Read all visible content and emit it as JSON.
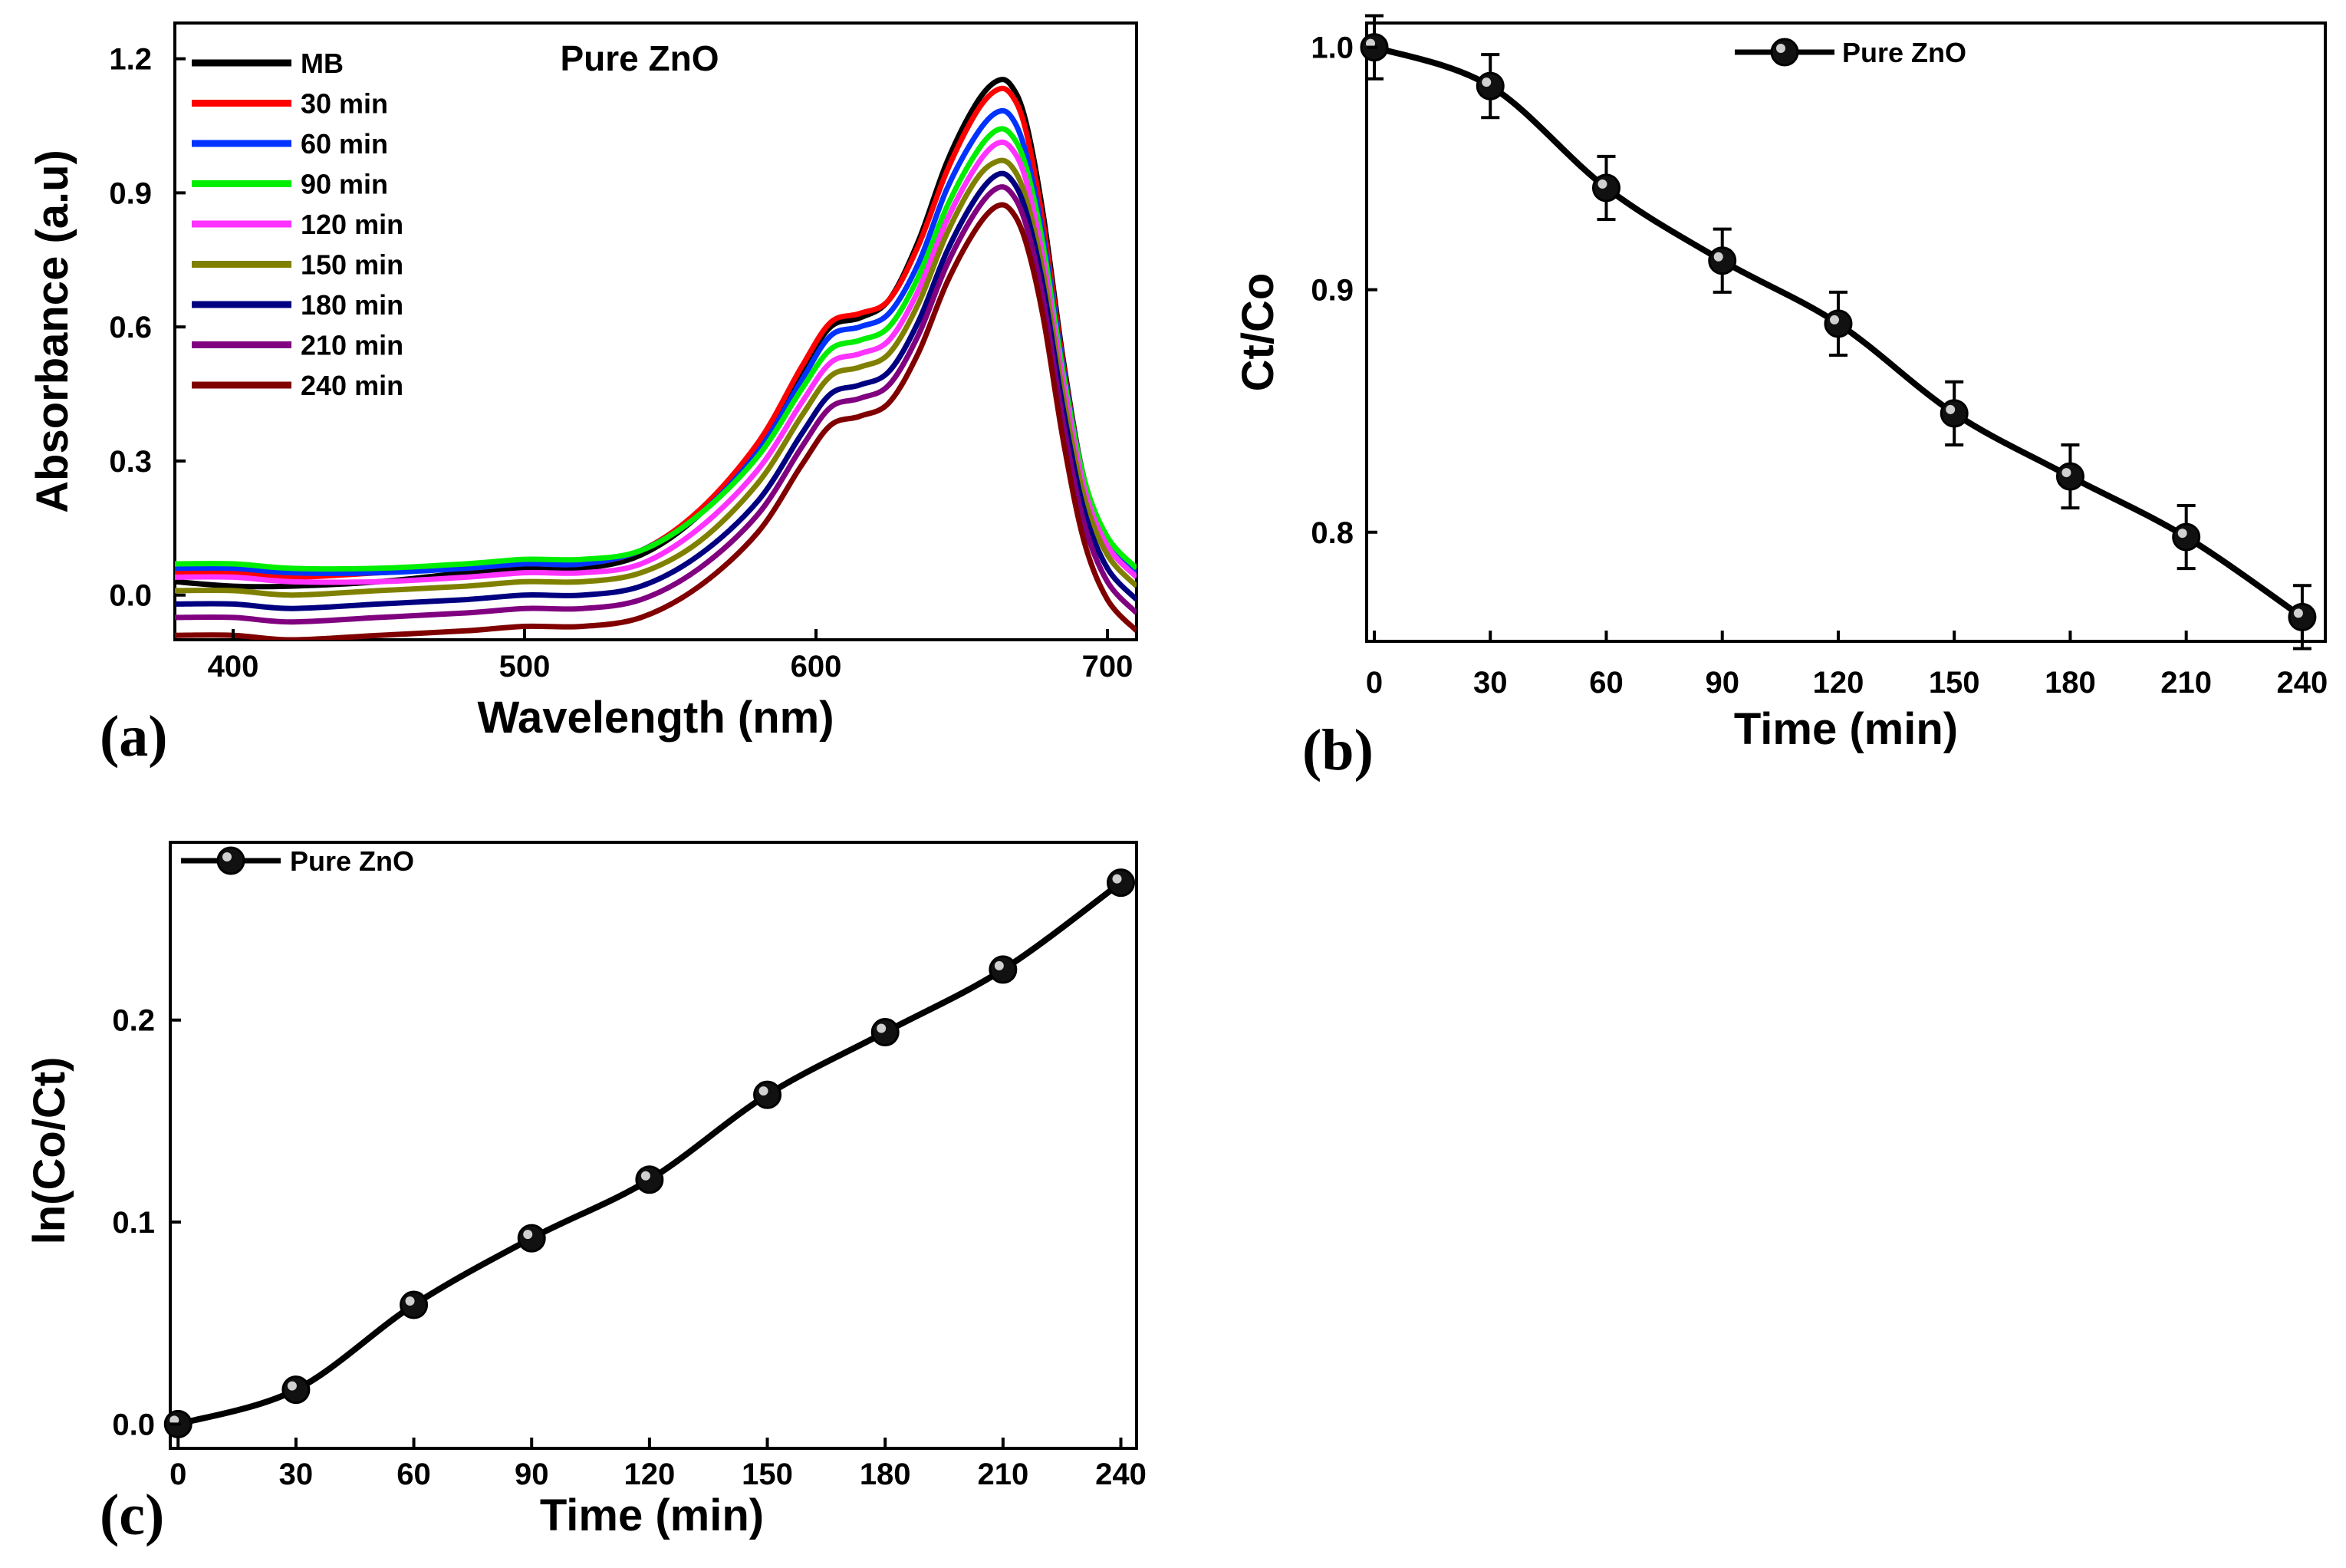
{
  "chart_data": [
    {
      "panel": "(a)",
      "type": "line",
      "title": "Pure ZnO",
      "xlabel": "Wavelength (nm)",
      "ylabel": "Absorbance (a.u)",
      "xlim": [
        380,
        710
      ],
      "ylim": [
        -0.1,
        1.28
      ],
      "xticks": [
        400,
        500,
        600,
        700
      ],
      "yticks": [
        0.0,
        0.3,
        0.6,
        0.9,
        1.2
      ],
      "xtick_labels": [
        "400",
        "500",
        "600",
        "700"
      ],
      "ytick_labels": [
        "0.0",
        "0.3",
        "0.6",
        "0.9",
        "1.2"
      ],
      "legend_position": "top-left",
      "x": [
        380,
        400,
        420,
        450,
        480,
        500,
        520,
        540,
        560,
        580,
        595,
        605,
        615,
        625,
        635,
        645,
        655,
        662,
        667,
        672,
        678,
        685,
        692,
        700,
        710
      ],
      "series": [
        {
          "name": "MB",
          "color": "#000000",
          "values": [
            0.03,
            0.02,
            0.02,
            0.03,
            0.05,
            0.06,
            0.06,
            0.09,
            0.18,
            0.33,
            0.5,
            0.6,
            0.62,
            0.66,
            0.79,
            0.97,
            1.1,
            1.15,
            1.14,
            1.06,
            0.85,
            0.52,
            0.26,
            0.12,
            0.04
          ]
        },
        {
          "name": "30 min",
          "color": "#ff0000",
          "values": [
            0.05,
            0.05,
            0.04,
            0.05,
            0.06,
            0.07,
            0.07,
            0.1,
            0.19,
            0.34,
            0.51,
            0.61,
            0.63,
            0.66,
            0.78,
            0.95,
            1.08,
            1.13,
            1.12,
            1.04,
            0.83,
            0.51,
            0.26,
            0.12,
            0.05
          ]
        },
        {
          "name": "60 min",
          "color": "#0033ff",
          "values": [
            0.06,
            0.06,
            0.05,
            0.05,
            0.06,
            0.07,
            0.07,
            0.1,
            0.18,
            0.32,
            0.48,
            0.58,
            0.6,
            0.63,
            0.74,
            0.91,
            1.03,
            1.08,
            1.07,
            0.99,
            0.8,
            0.5,
            0.26,
            0.12,
            0.05
          ]
        },
        {
          "name": "90 min",
          "color": "#00ee00",
          "values": [
            0.07,
            0.07,
            0.06,
            0.06,
            0.07,
            0.08,
            0.08,
            0.1,
            0.18,
            0.31,
            0.46,
            0.55,
            0.57,
            0.6,
            0.71,
            0.87,
            0.99,
            1.04,
            1.03,
            0.96,
            0.78,
            0.49,
            0.26,
            0.13,
            0.06
          ]
        },
        {
          "name": "120 min",
          "color": "#ff33ff",
          "values": [
            0.04,
            0.04,
            0.03,
            0.03,
            0.04,
            0.05,
            0.05,
            0.07,
            0.15,
            0.28,
            0.43,
            0.52,
            0.54,
            0.57,
            0.68,
            0.84,
            0.96,
            1.01,
            1.0,
            0.93,
            0.75,
            0.47,
            0.24,
            0.11,
            0.04
          ]
        },
        {
          "name": "150 min",
          "color": "#808000",
          "values": [
            0.01,
            0.01,
            0.0,
            0.01,
            0.02,
            0.03,
            0.03,
            0.05,
            0.12,
            0.25,
            0.4,
            0.49,
            0.51,
            0.54,
            0.65,
            0.81,
            0.93,
            0.97,
            0.96,
            0.89,
            0.72,
            0.44,
            0.22,
            0.09,
            0.02
          ]
        },
        {
          "name": "180 min",
          "color": "#000080",
          "values": [
            -0.02,
            -0.02,
            -0.03,
            -0.02,
            -0.01,
            0.0,
            0.0,
            0.02,
            0.09,
            0.21,
            0.36,
            0.45,
            0.47,
            0.5,
            0.61,
            0.77,
            0.89,
            0.94,
            0.93,
            0.86,
            0.69,
            0.41,
            0.19,
            0.06,
            -0.01
          ]
        },
        {
          "name": "210 min",
          "color": "#800080",
          "values": [
            -0.05,
            -0.05,
            -0.06,
            -0.05,
            -0.04,
            -0.03,
            -0.03,
            -0.01,
            0.06,
            0.18,
            0.33,
            0.42,
            0.44,
            0.47,
            0.58,
            0.74,
            0.86,
            0.91,
            0.9,
            0.83,
            0.66,
            0.38,
            0.16,
            0.03,
            -0.04
          ]
        },
        {
          "name": "240 min",
          "color": "#800000",
          "values": [
            -0.09,
            -0.09,
            -0.1,
            -0.09,
            -0.08,
            -0.07,
            -0.07,
            -0.05,
            0.02,
            0.14,
            0.29,
            0.38,
            0.4,
            0.43,
            0.54,
            0.7,
            0.82,
            0.87,
            0.86,
            0.79,
            0.62,
            0.34,
            0.12,
            -0.01,
            -0.08
          ]
        }
      ]
    },
    {
      "panel": "(b)",
      "type": "line",
      "title": "",
      "xlabel": "Time (min)",
      "ylabel": "Ct/Co",
      "xlim": [
        0,
        242
      ],
      "ylim": [
        0.755,
        1.01
      ],
      "xticks": [
        0,
        30,
        60,
        90,
        120,
        150,
        180,
        210,
        240
      ],
      "yticks": [
        0.8,
        0.9,
        1.0
      ],
      "xtick_labels": [
        "0",
        "30",
        "60",
        "90",
        "120",
        "150",
        "180",
        "210",
        "240"
      ],
      "ytick_labels": [
        "0.8",
        "0.9",
        "1.0"
      ],
      "legend_position": "top-center",
      "series": [
        {
          "name": "Pure ZnO",
          "x": [
            0,
            30,
            60,
            90,
            120,
            150,
            180,
            210,
            240
          ],
          "values": [
            1.0,
            0.984,
            0.942,
            0.912,
            0.886,
            0.849,
            0.823,
            0.798,
            0.765
          ],
          "error": 0.013
        }
      ]
    },
    {
      "panel": "(c)",
      "type": "line",
      "title": "",
      "xlabel": "Time (min)",
      "ylabel": "ln(Co/Ct)",
      "xlim": [
        -2,
        244
      ],
      "ylim": [
        -0.012,
        0.288
      ],
      "xticks": [
        0,
        30,
        60,
        90,
        120,
        150,
        180,
        210,
        240
      ],
      "yticks": [
        0.0,
        0.1,
        0.2
      ],
      "xtick_labels": [
        "0",
        "30",
        "60",
        "90",
        "120",
        "150",
        "180",
        "210",
        "240"
      ],
      "ytick_labels": [
        "0.0",
        "0.1",
        "0.2"
      ],
      "legend_position": "top-left",
      "series": [
        {
          "name": "Pure ZnO",
          "x": [
            0,
            30,
            60,
            90,
            120,
            150,
            180,
            210,
            240
          ],
          "values": [
            0.0,
            0.017,
            0.059,
            0.092,
            0.121,
            0.163,
            0.194,
            0.225,
            0.268
          ]
        }
      ]
    }
  ]
}
